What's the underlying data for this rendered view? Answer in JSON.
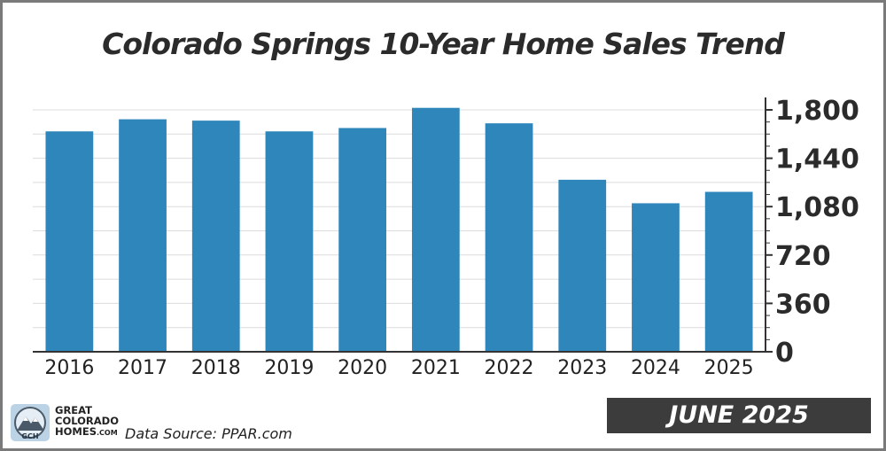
{
  "chart_data": {
    "type": "bar",
    "title": "Colorado Springs 10-Year Home Sales Trend",
    "categories": [
      "2016",
      "2017",
      "2018",
      "2019",
      "2020",
      "2021",
      "2022",
      "2023",
      "2024",
      "2025"
    ],
    "values": [
      1640,
      1730,
      1720,
      1640,
      1665,
      1815,
      1700,
      1280,
      1105,
      1190
    ],
    "y_ticks": [
      "0",
      "360",
      "720",
      "1,080",
      "1,440",
      "1,800"
    ],
    "ylim": [
      0,
      1800
    ],
    "y_axis_side": "right",
    "grid": true,
    "bar_color": "#2e86ba"
  },
  "badge": "JUNE 2025",
  "brand": {
    "line1": "GREAT",
    "line2": "COLORADO",
    "line3": "HOMES",
    "line4": ".COM",
    "initials": "GCH"
  },
  "source": "Data Source: PPAR.com"
}
